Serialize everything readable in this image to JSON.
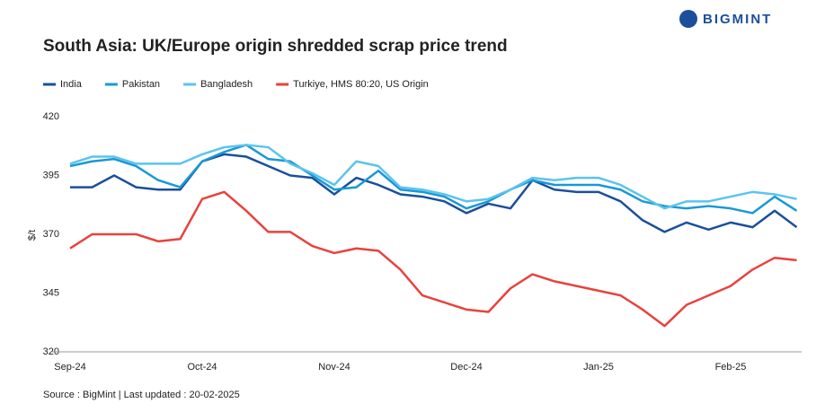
{
  "logo": "BIGMINT",
  "chart_data": {
    "type": "line",
    "title": "South Asia: UK/Europe origin shredded scrap price trend",
    "y_label": "$/t",
    "source": "Source : BigMint | Last updated : 20-02-2025",
    "categories": [
      "Sep-24",
      null,
      null,
      null,
      null,
      null,
      "Oct-24",
      null,
      null,
      null,
      null,
      null,
      "Nov-24",
      null,
      null,
      null,
      null,
      null,
      "Dec-24",
      null,
      null,
      null,
      null,
      null,
      "Jan-25",
      null,
      null,
      null,
      null,
      null,
      "Feb-25",
      null,
      null,
      null
    ],
    "ylim": [
      320,
      420
    ],
    "yticks": [
      320,
      345,
      370,
      395,
      420
    ],
    "grid": false,
    "series": [
      {
        "name": "India",
        "color": "#1b4f9b",
        "values": [
          390,
          390,
          395,
          390,
          389,
          389,
          401,
          404,
          403,
          399,
          395,
          394,
          387,
          394,
          391,
          387,
          386,
          384,
          379,
          383,
          381,
          393,
          389,
          388,
          388,
          384,
          376,
          371,
          375,
          372,
          375,
          373,
          380,
          373
        ]
      },
      {
        "name": "Pakistan",
        "color": "#1899d5",
        "values": [
          399,
          401,
          402,
          399,
          393,
          390,
          401,
          405,
          408,
          402,
          401,
          395,
          389,
          390,
          397,
          389,
          388,
          386,
          381,
          384,
          389,
          393,
          391,
          391,
          391,
          389,
          384,
          382,
          381,
          382,
          381,
          379,
          386,
          380
        ]
      },
      {
        "name": "Bangladesh",
        "color": "#5cc3ee",
        "values": [
          400,
          403,
          403,
          400,
          400,
          400,
          404,
          407,
          408,
          407,
          400,
          396,
          391,
          401,
          399,
          390,
          389,
          387,
          384,
          385,
          389,
          394,
          393,
          394,
          394,
          391,
          386,
          381,
          384,
          384,
          386,
          388,
          387,
          385
        ]
      },
      {
        "name": "Turkiye, HMS 80:20, US Origin",
        "color": "#e8423d",
        "values": [
          364,
          370,
          370,
          370,
          367,
          368,
          385,
          388,
          380,
          371,
          371,
          365,
          362,
          364,
          363,
          355,
          344,
          341,
          338,
          337,
          347,
          353,
          350,
          348,
          346,
          344,
          338,
          331,
          340,
          344,
          348,
          355,
          360,
          359
        ]
      }
    ]
  }
}
